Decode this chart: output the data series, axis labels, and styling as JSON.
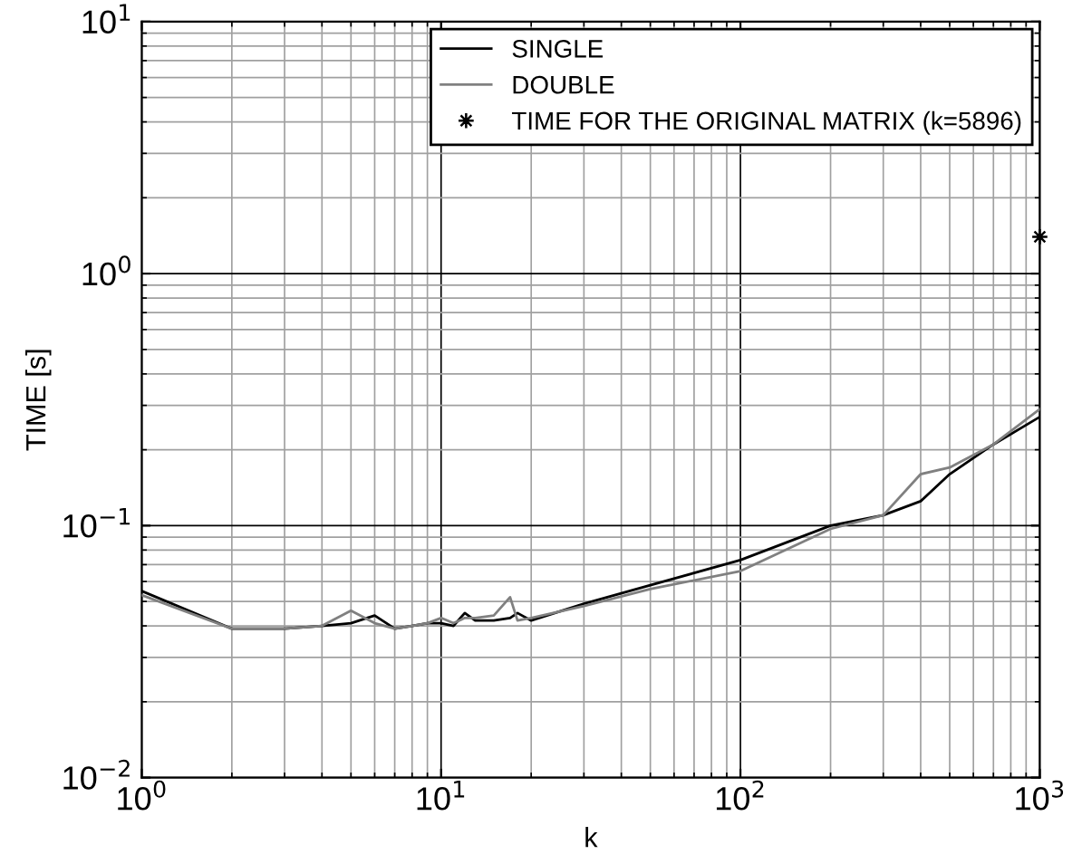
{
  "chart_data": {
    "type": "line",
    "xlabel": "k",
    "ylabel": "TIME [s]",
    "log": "xy",
    "grid": true,
    "legend": "top right",
    "xlim": [
      1,
      1000
    ],
    "ylim": [
      0.01,
      10
    ],
    "xticks": [
      {
        "value": 1,
        "label": "10$^{0}$"
      },
      {
        "value": 10,
        "label": "10$^{1}$"
      },
      {
        "value": 100,
        "label": "10$^{2}$"
      },
      {
        "value": 1000,
        "label": "10$^{3}$"
      }
    ],
    "yticks": [
      {
        "value": 0.01,
        "label": "10$^{−2}$"
      },
      {
        "value": 0.1,
        "label": "10$^{−1}$"
      },
      {
        "value": 1,
        "label": "10$^{0}$"
      },
      {
        "value": 10,
        "label": "10$^{1}$"
      }
    ],
    "series": [
      {
        "name": "SINGLE",
        "color": "#000000",
        "x": [
          1,
          2,
          3,
          4,
          5,
          6,
          7,
          8,
          9,
          10,
          11,
          12,
          13,
          15,
          17,
          18,
          20,
          30,
          50,
          100,
          200,
          300,
          400,
          500,
          700,
          1000
        ],
        "values": [
          0.055,
          0.039,
          0.039,
          0.04,
          0.041,
          0.044,
          0.039,
          0.04,
          0.041,
          0.041,
          0.04,
          0.045,
          0.042,
          0.042,
          0.043,
          0.045,
          0.042,
          0.049,
          0.058,
          0.073,
          0.1,
          0.11,
          0.125,
          0.16,
          0.21,
          0.27
        ]
      },
      {
        "name": "DOUBLE",
        "color": "#808080",
        "x": [
          1,
          2,
          3,
          4,
          5,
          6,
          7,
          8,
          9,
          10,
          11,
          12,
          13,
          15,
          17,
          18,
          20,
          30,
          50,
          100,
          200,
          300,
          400,
          500,
          700,
          1000
        ],
        "values": [
          0.053,
          0.039,
          0.039,
          0.04,
          0.046,
          0.041,
          0.039,
          0.04,
          0.041,
          0.043,
          0.041,
          0.043,
          0.043,
          0.044,
          0.052,
          0.042,
          0.043,
          0.048,
          0.056,
          0.066,
          0.097,
          0.11,
          0.16,
          0.17,
          0.21,
          0.29
        ]
      },
      {
        "name": "TIME FOR THE ORIGINAL MATRIX (k=5896)",
        "type": "scatter",
        "marker": "star",
        "color": "#000000",
        "x": [
          1000
        ],
        "values": [
          1.4
        ]
      }
    ]
  }
}
